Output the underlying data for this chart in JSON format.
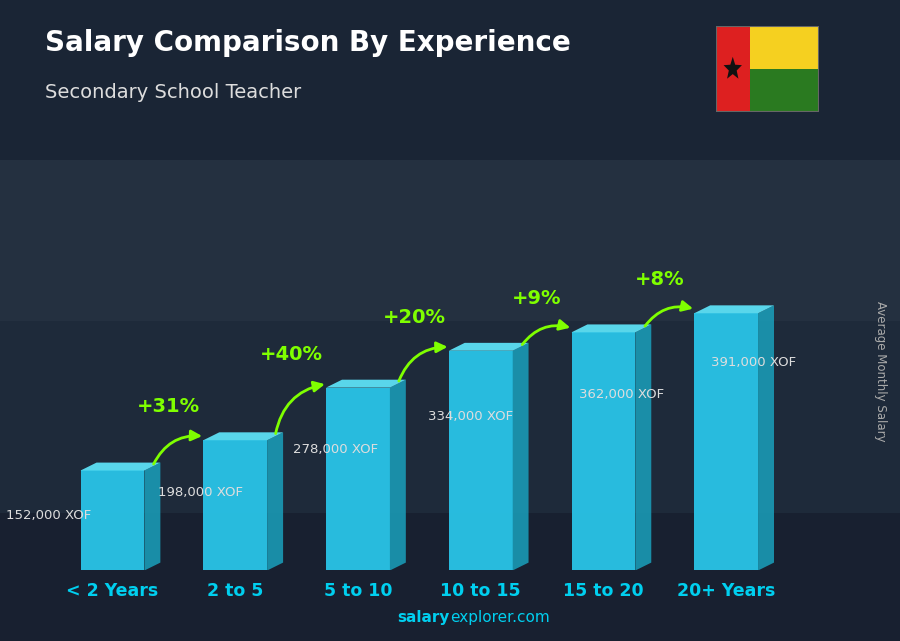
{
  "title": "Salary Comparison By Experience",
  "subtitle": "Secondary School Teacher",
  "categories": [
    "< 2 Years",
    "2 to 5",
    "5 to 10",
    "10 to 15",
    "15 to 20",
    "20+ Years"
  ],
  "values": [
    152000,
    198000,
    278000,
    334000,
    362000,
    391000
  ],
  "labels": [
    "152,000 XOF",
    "198,000 XOF",
    "278,000 XOF",
    "334,000 XOF",
    "362,000 XOF",
    "391,000 XOF"
  ],
  "pct_changes": [
    "+31%",
    "+40%",
    "+20%",
    "+9%",
    "+8%"
  ],
  "bar_color_front": "#29c4e8",
  "bar_color_top": "#5de0f5",
  "bar_color_side": "#1a9ab5",
  "bg_color": "#1a2535",
  "ylabel": "Average Monthly Salary",
  "footer_salary": "salary",
  "footer_explorer": "explorer.com",
  "title_color": "#ffffff",
  "subtitle_color": "#dddddd",
  "label_color": "#dddddd",
  "pct_color": "#7fff00",
  "xtick_color": "#00cfef",
  "footer_color": "#00cfef"
}
